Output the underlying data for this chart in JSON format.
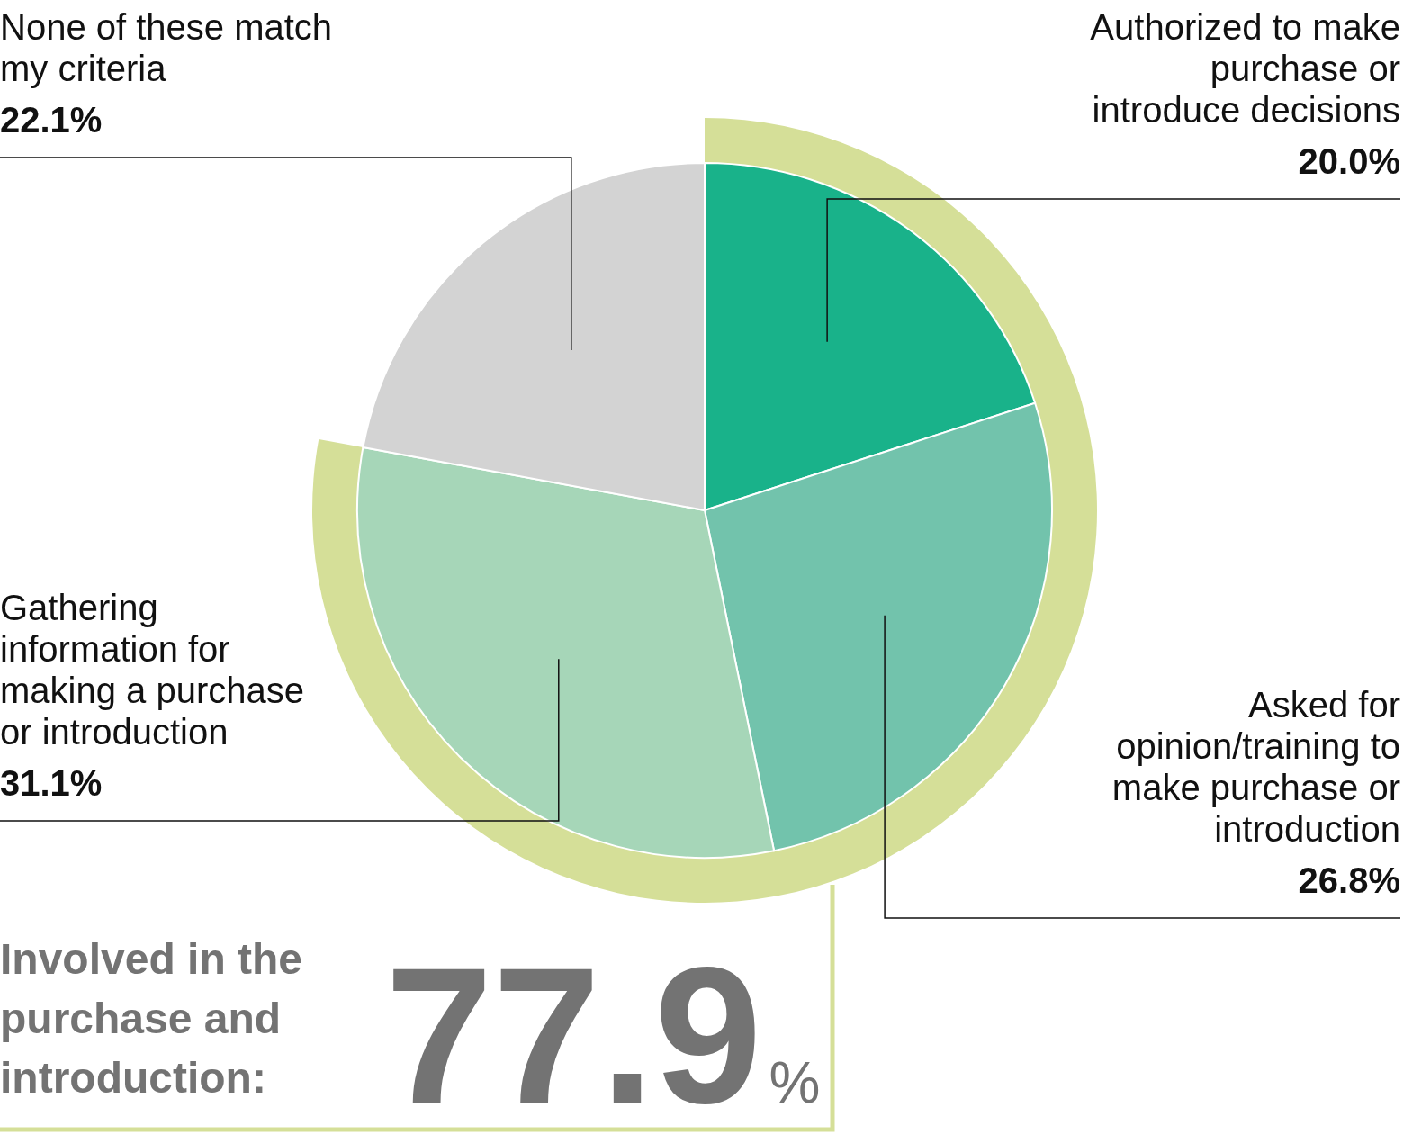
{
  "chart_data": {
    "type": "pie",
    "categories": [
      "Authorized to make purchase or introduce decisions",
      "Asked for opinion/training to make purchase or introduction",
      "Gathering information for making a purchase or introduction",
      "None of these match my criteria"
    ],
    "values": [
      20.0,
      26.8,
      31.1,
      22.1
    ],
    "colors": [
      "#19b28a",
      "#72c3ac",
      "#a6d6b8",
      "#d3d3d3"
    ],
    "value_labels": [
      "20.0%",
      "26.8%",
      "31.1%",
      "22.1%"
    ],
    "annotations": [
      "Involved in the purchase and introduction:",
      "77.9%"
    ]
  }
}
